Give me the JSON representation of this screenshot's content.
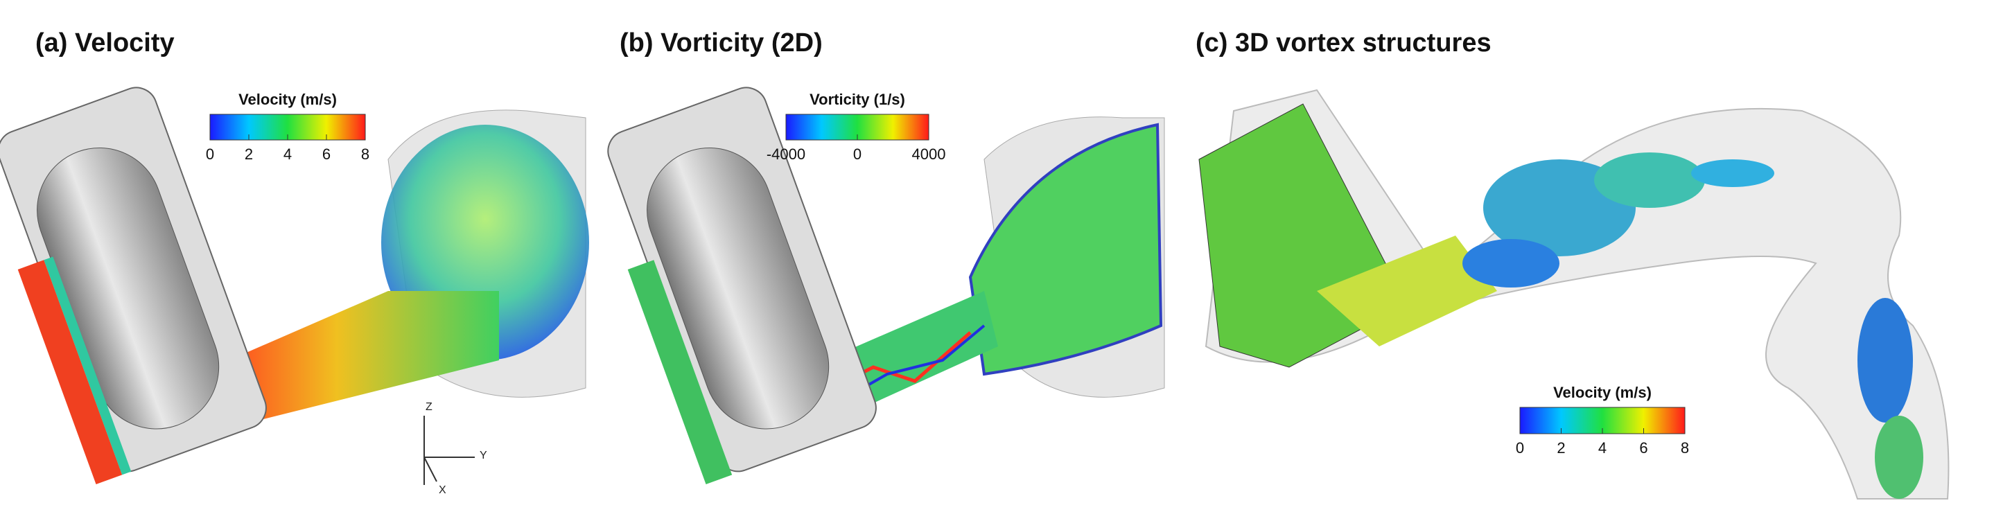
{
  "panels": [
    {
      "title": "(a) Velocity",
      "colorbar": {
        "title": "Velocity (m/s)",
        "range": [
          0,
          8
        ],
        "ticks": [
          0,
          2,
          4,
          6,
          8
        ]
      },
      "axes": {
        "z": "Z",
        "y": "Y",
        "x": "X"
      }
    },
    {
      "title": "(b) Vorticity (2D)",
      "colorbar": {
        "title": "Vorticity (1/s)",
        "range": [
          -4000,
          4000
        ],
        "ticks": [
          -4000,
          0,
          4000
        ]
      }
    },
    {
      "title": "(c) 3D vortex structures",
      "colorbar": {
        "title": "Velocity (m/s)",
        "range": [
          0,
          8
        ],
        "ticks": [
          0,
          2,
          4,
          6,
          8
        ]
      }
    }
  ]
}
